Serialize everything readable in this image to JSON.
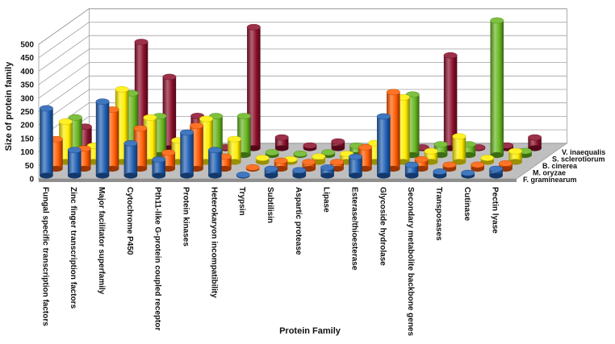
{
  "chart_data": {
    "type": "bar",
    "style": "3d-cylinder",
    "title": "",
    "xlabel": "Protein Family",
    "ylabel": "Size of protein family",
    "ylim": [
      0,
      500
    ],
    "yticks": [
      0,
      50,
      100,
      150,
      200,
      250,
      300,
      350,
      400,
      450,
      500
    ],
    "grid": true,
    "categories": [
      "Fungal specific transcription factors",
      "Zinc finger transcription factors",
      "Major facilitator superfamily",
      "Cytochrome P450",
      "Pth11-like G-protein coupled receptor",
      "Protein kinases",
      "Heterokaryon incompatibility",
      "Trypsin",
      "Subtilisin",
      "Aspartic protease",
      "Lipase",
      "Esterase/thioesterase",
      "Glycoside hydrolase",
      "Secondary metabolite backbone genes",
      "Transposases",
      "Cutinase",
      "Pectin lyase"
    ],
    "series": [
      {
        "name": "F. graminearum",
        "color": "#1f5fb4",
        "values": [
          250,
          95,
          275,
          120,
          60,
          160,
          95,
          3,
          25,
          20,
          30,
          70,
          220,
          40,
          15,
          10,
          25
        ]
      },
      {
        "name": "M. oryzae",
        "color": "#ff5a00",
        "values": [
          110,
          75,
          220,
          150,
          60,
          160,
          45,
          5,
          30,
          25,
          25,
          80,
          285,
          35,
          15,
          15,
          20
        ]
      },
      {
        "name": "B. cinerea",
        "color": "#ffee00",
        "values": [
          150,
          60,
          270,
          165,
          80,
          160,
          85,
          15,
          10,
          20,
          30,
          70,
          240,
          40,
          95,
          15,
          40
        ]
      },
      {
        "name": "S. sclerotiorum",
        "color": "#66b51e",
        "values": [
          140,
          75,
          230,
          145,
          50,
          145,
          145,
          10,
          5,
          10,
          35,
          40,
          225,
          40,
          40,
          500,
          15
        ]
      },
      {
        "name": "V. inaequalis",
        "color": "#8a0e2a",
        "values": [
          80,
          3,
          395,
          265,
          120,
          3,
          450,
          40,
          10,
          25,
          3,
          30,
          3,
          345,
          3,
          10,
          40
        ]
      }
    ],
    "legend": "series labels along the right depth axis"
  }
}
